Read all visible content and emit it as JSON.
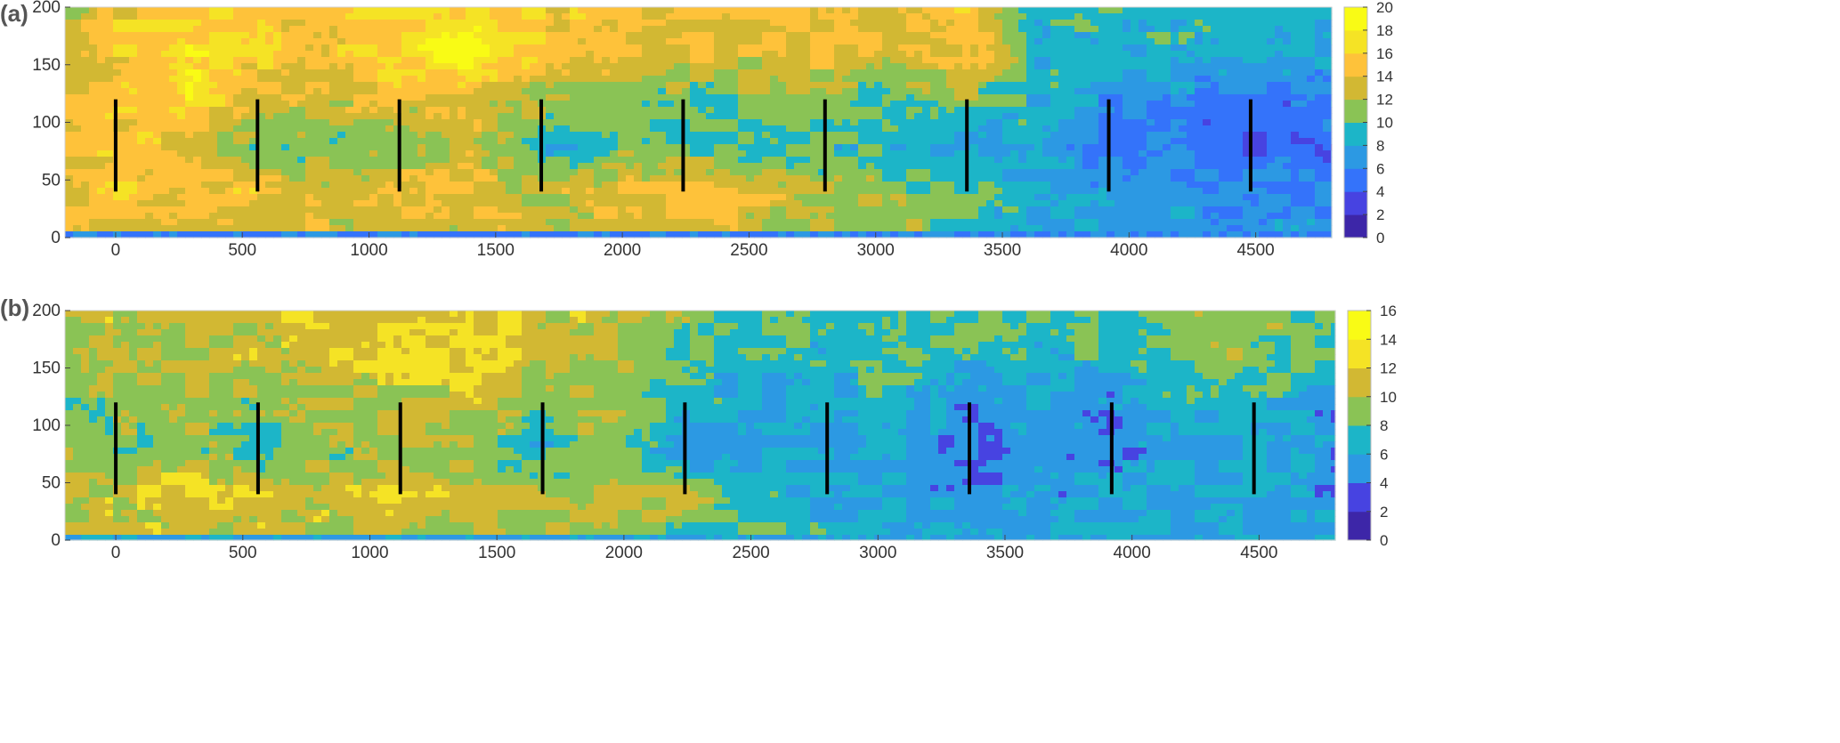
{
  "chart_data": [
    {
      "type": "heatmap",
      "panel_label": "(a)",
      "xlim": [
        -200,
        4800
      ],
      "ylim": [
        0,
        200
      ],
      "x_ticks": [
        0,
        500,
        1000,
        1500,
        2000,
        2500,
        3000,
        3500,
        4000,
        4500
      ],
      "y_ticks": [
        0,
        50,
        100,
        150,
        200
      ],
      "colorbar_ticks": [
        0,
        2,
        4,
        6,
        8,
        10,
        12,
        14,
        16,
        18,
        20
      ],
      "colorbar_range": [
        0,
        20
      ],
      "grid": false,
      "turbine_x": [
        0,
        560,
        1120,
        1680,
        2240,
        2800,
        3360,
        3920,
        4480
      ],
      "turbine_y_range": [
        40,
        120
      ],
      "field_x": [
        -200,
        0,
        280,
        560,
        840,
        1120,
        1400,
        1680,
        1960,
        2240,
        2520,
        2800,
        3080,
        3360,
        3640,
        3920,
        4200,
        4480,
        4800
      ],
      "field_y": [
        0,
        40,
        80,
        120,
        160,
        200
      ],
      "field_values": [
        [
          13,
          13,
          13,
          13,
          13,
          13,
          13,
          13,
          13,
          13,
          12,
          11,
          11,
          10,
          9,
          8,
          8,
          7,
          7
        ],
        [
          14,
          16,
          15,
          15,
          13,
          14,
          14,
          12,
          14,
          15,
          14,
          12,
          11,
          10,
          8,
          7,
          7,
          6,
          6
        ],
        [
          14,
          15,
          14,
          10,
          11,
          11,
          13,
          8,
          10,
          10,
          9,
          9,
          9,
          8,
          8,
          5,
          5,
          4,
          5
        ],
        [
          14,
          15,
          17,
          13,
          13,
          14,
          14,
          12,
          11,
          10,
          11,
          11,
          10,
          11,
          9,
          7,
          6,
          5,
          6
        ],
        [
          13,
          15,
          17,
          16,
          15,
          16,
          19,
          15,
          15,
          14,
          13,
          14,
          13,
          15,
          9,
          9,
          9,
          9,
          8
        ],
        [
          12,
          15,
          16,
          15,
          15,
          16,
          17,
          15,
          15,
          14,
          14,
          15,
          14,
          15,
          9,
          9,
          9,
          9,
          8
        ]
      ]
    },
    {
      "type": "heatmap",
      "panel_label": "(b)",
      "xlim": [
        -200,
        4800
      ],
      "ylim": [
        0,
        200
      ],
      "x_ticks": [
        0,
        500,
        1000,
        1500,
        2000,
        2500,
        3000,
        3500,
        4000,
        4500
      ],
      "y_ticks": [
        0,
        50,
        100,
        150,
        200
      ],
      "colorbar_ticks": [
        0,
        2,
        4,
        6,
        8,
        10,
        12,
        14,
        16
      ],
      "colorbar_range": [
        0,
        16
      ],
      "grid": false,
      "turbine_x": [
        0,
        560,
        1120,
        1680,
        2240,
        2800,
        3360,
        3920,
        4480
      ],
      "turbine_y_range": [
        40,
        120
      ],
      "field_x": [
        -200,
        0,
        280,
        560,
        840,
        1120,
        1400,
        1680,
        1960,
        2240,
        2520,
        2800,
        3080,
        3360,
        3640,
        3920,
        4200,
        4480,
        4800
      ],
      "field_y": [
        0,
        40,
        80,
        120,
        160,
        200
      ],
      "field_values": [
        [
          10,
          10,
          11,
          10,
          10,
          10,
          10,
          10,
          10,
          8,
          8,
          7,
          6,
          6,
          6,
          6,
          6,
          6,
          6
        ],
        [
          10,
          11,
          12,
          12,
          11,
          12,
          11,
          10,
          10,
          10,
          7,
          6,
          6,
          5,
          5,
          6,
          6,
          6,
          5
        ],
        [
          10,
          8,
          10,
          7,
          9,
          9,
          9,
          7,
          9,
          5,
          6,
          5,
          6,
          3,
          5,
          4,
          6,
          6,
          5
        ],
        [
          9,
          9,
          10,
          9,
          10,
          10,
          11,
          9,
          10,
          7,
          6,
          6,
          7,
          5,
          6,
          5,
          7,
          7,
          5
        ],
        [
          9,
          11,
          10,
          11,
          11,
          12,
          13,
          11,
          10,
          8,
          7,
          7,
          8,
          7,
          7,
          7,
          8,
          9,
          8
        ],
        [
          10,
          11,
          10,
          11,
          12,
          12,
          12,
          11,
          11,
          9,
          8,
          8,
          8,
          8,
          8,
          8,
          9,
          9,
          8
        ]
      ]
    }
  ],
  "colormap": [
    "#3d26a8",
    "#4743e1",
    "#3473fa",
    "#2c99e3",
    "#1cb5c8",
    "#33c19f",
    "#8ac355",
    "#d2b833",
    "#fec23a",
    "#f5e325",
    "#f9fb15"
  ]
}
